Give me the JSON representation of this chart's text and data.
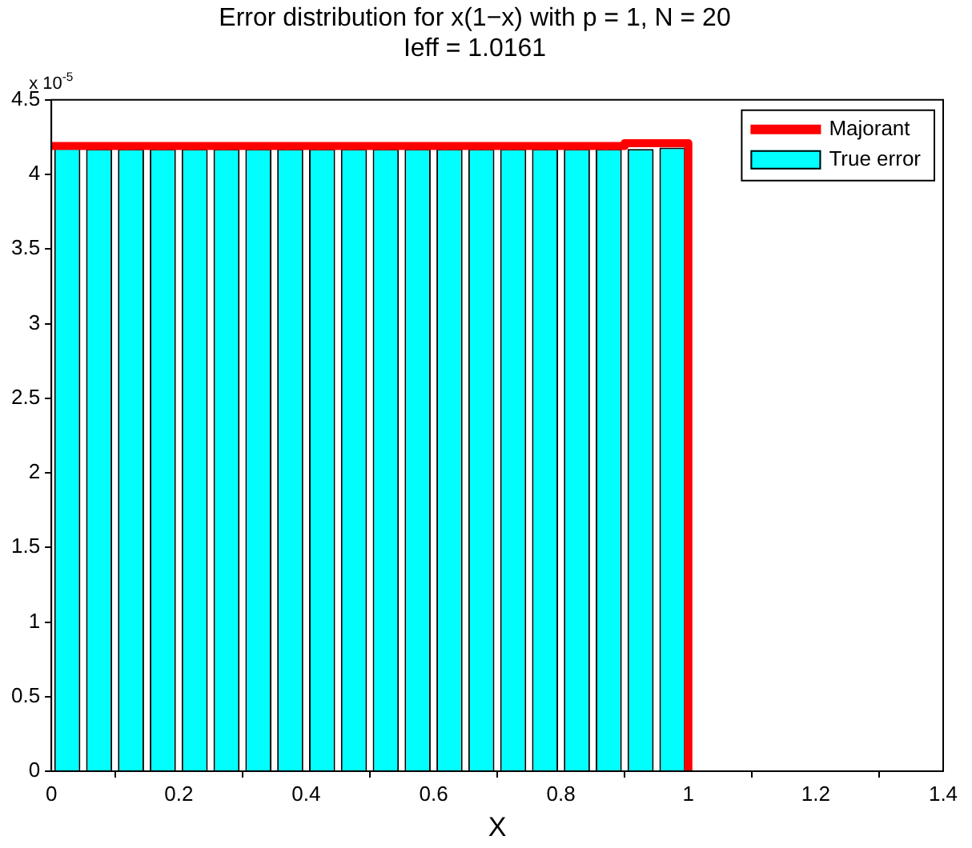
{
  "chart_data": {
    "type": "histogram",
    "title": "Error distribution for x(1−x) with p = 1, N = 20",
    "subtitle": "Ieff = 1.0161",
    "xlabel": "X",
    "annotations": [
      "x 10$^{-5}$"
    ],
    "bins": [
      0,
      0.05,
      0.1,
      0.15,
      0.2,
      0.25,
      0.3,
      0.35,
      0.4,
      0.45,
      0.5,
      0.55,
      0.6,
      0.65,
      0.7,
      0.75,
      0.8,
      0.85,
      0.9,
      0.95,
      1
    ],
    "series": [
      {
        "name": "Majorant",
        "type": "step",
        "color": "#ff0000",
        "x": [
          0,
          0.05,
          0.1,
          0.15,
          0.2,
          0.25,
          0.3,
          0.35,
          0.4,
          0.45,
          0.5,
          0.55,
          0.6,
          0.65,
          0.7,
          0.75,
          0.8,
          0.85,
          0.9,
          0.95,
          1,
          1
        ],
        "values": [
          4.21,
          4.19,
          4.19,
          4.19,
          4.19,
          4.19,
          4.19,
          4.19,
          4.19,
          4.19,
          4.19,
          4.19,
          4.19,
          4.19,
          4.19,
          4.19,
          4.19,
          4.19,
          4.19,
          4.21,
          4.21,
          0
        ]
      },
      {
        "name": "True error",
        "color": "#00ffff",
        "values": [
          4.18,
          4.17,
          4.17,
          4.17,
          4.17,
          4.17,
          4.17,
          4.17,
          4.17,
          4.17,
          4.17,
          4.17,
          4.17,
          4.17,
          4.17,
          4.17,
          4.17,
          4.17,
          4.17,
          4.18
        ]
      }
    ],
    "xlim": [
      0,
      1.4
    ],
    "xticks": [
      0,
      0.2,
      0.4,
      0.6,
      0.8,
      1,
      1.2,
      1.4
    ],
    "ylim": [
      0,
      4.5
    ],
    "yticks": [
      0,
      0.5,
      1,
      1.5,
      2,
      2.5,
      3,
      3.5,
      4,
      4.5
    ],
    "legend": "top right"
  }
}
